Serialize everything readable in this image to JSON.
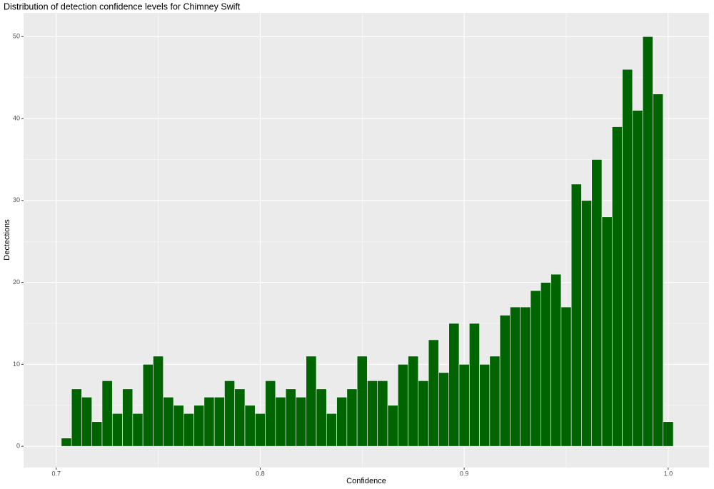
{
  "chart_data": {
    "type": "histogram",
    "title": "Distribution of detection confidence levels for Chimney Swift",
    "x_label": "Confidence",
    "y_label": "Dectections",
    "color": "#006400",
    "bins": [
      0.7025,
      0.7075,
      0.7125,
      0.7175,
      0.7225,
      0.7275,
      0.7325,
      0.7375,
      0.7425,
      0.7475,
      0.7525,
      0.7575,
      0.7625,
      0.7675,
      0.7725,
      0.7775,
      0.7825,
      0.7875,
      0.7925,
      0.7975,
      0.8025,
      0.8075,
      0.8125,
      0.8175,
      0.8225,
      0.8275,
      0.8325,
      0.8375,
      0.8425,
      0.8475,
      0.8525,
      0.8575,
      0.8625,
      0.8675,
      0.8725,
      0.8775,
      0.8825,
      0.8875,
      0.8925,
      0.8975,
      0.9025,
      0.9075,
      0.9125,
      0.9175,
      0.9225,
      0.9275,
      0.9325,
      0.9375,
      0.9425,
      0.9475,
      0.9525,
      0.9575,
      0.9625,
      0.9675,
      0.9725,
      0.9775,
      0.9825,
      0.9875,
      0.9925,
      0.9975,
      1.0025
    ],
    "values": [
      1,
      7,
      6,
      3,
      8,
      4,
      7,
      4,
      10,
      11,
      6,
      5,
      4,
      5,
      6,
      6,
      8,
      7,
      5,
      4,
      8,
      6,
      7,
      6,
      11,
      7,
      4,
      6,
      7,
      11,
      8,
      8,
      5,
      10,
      11,
      8,
      13,
      9,
      15,
      10,
      15,
      10,
      11,
      16,
      17,
      17,
      19,
      20,
      21,
      17,
      32,
      30,
      35,
      28,
      39,
      46,
      41,
      50,
      43,
      3
    ],
    "xlim": [
      0.684,
      1.02
    ],
    "ylim": [
      -2.6,
      52.9
    ],
    "xticks": [
      0.7,
      0.8,
      0.9,
      {
        "value": 1,
        "label": "1.0"
      }
    ],
    "yticks": [
      0,
      10,
      20,
      30,
      40,
      50
    ],
    "grid": true
  }
}
